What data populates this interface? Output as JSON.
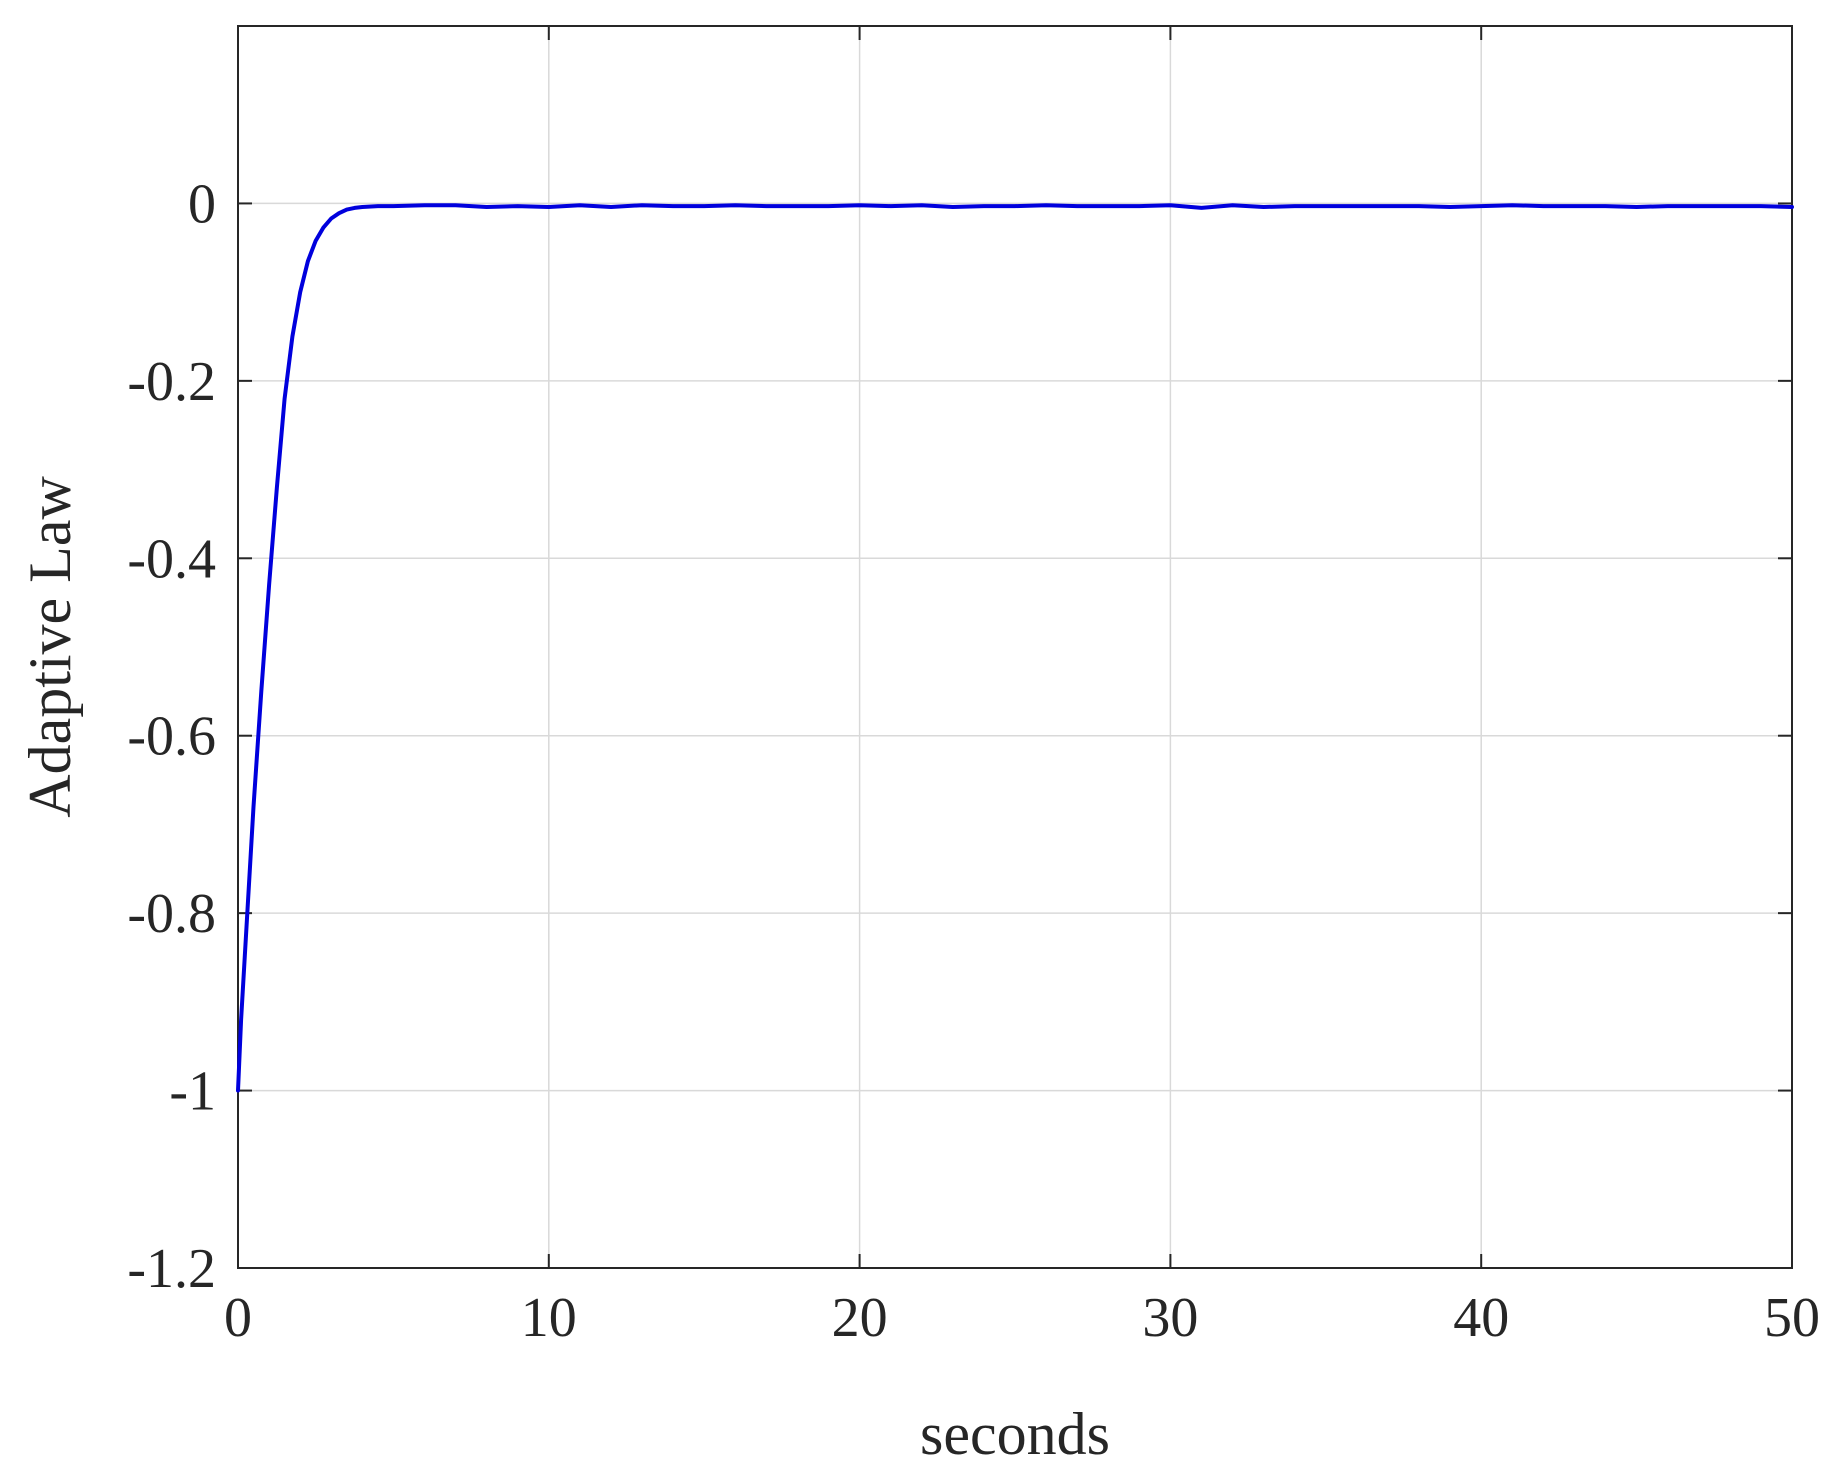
{
  "chart_data": {
    "type": "line",
    "title": "",
    "xlabel": "seconds",
    "ylabel": "Adaptive Law",
    "xlim": [
      0,
      50
    ],
    "ylim": [
      -1.2,
      0.2
    ],
    "xticks": [
      0,
      10,
      20,
      30,
      40,
      50
    ],
    "xtick_labels": [
      "0",
      "10",
      "20",
      "30",
      "40",
      "50"
    ],
    "yticks": [
      -1.2,
      -1,
      -0.8,
      -0.6,
      -0.4,
      -0.2,
      0
    ],
    "ytick_labels": [
      "-1.2",
      "-1",
      "-0.8",
      "-0.6",
      "-0.4",
      "-0.2",
      "0"
    ],
    "grid": true,
    "legend": "none",
    "colors": {
      "line": "#0000dd",
      "grid": "#d9d9d9",
      "axes": "#262626"
    },
    "series": [
      {
        "color": "#0000dd",
        "x": [
          0,
          0.1,
          0.3,
          0.5,
          0.75,
          1.0,
          1.25,
          1.5,
          1.75,
          2.0,
          2.25,
          2.5,
          2.75,
          3.0,
          3.25,
          3.5,
          3.75,
          4.0,
          4.5,
          5.0,
          6.0,
          7.0,
          8.0,
          9.0,
          10.0,
          11.0,
          12.0,
          13.0,
          14.0,
          15.0,
          16.0,
          17.0,
          18.0,
          19.0,
          20.0,
          21.0,
          22.0,
          23.0,
          24.0,
          25.0,
          26.0,
          27.0,
          28.0,
          29.0,
          30.0,
          31.0,
          32.0,
          33.0,
          34.0,
          35.0,
          36.0,
          37.0,
          38.0,
          39.0,
          40.0,
          41.0,
          42.0,
          43.0,
          44.0,
          45.0,
          46.0,
          47.0,
          48.0,
          49.0,
          50.0
        ],
        "y": [
          -1.0,
          -0.92,
          -0.8,
          -0.68,
          -0.55,
          -0.43,
          -0.32,
          -0.22,
          -0.15,
          -0.1,
          -0.065,
          -0.042,
          -0.027,
          -0.017,
          -0.011,
          -0.007,
          -0.005,
          -0.004,
          -0.003,
          -0.003,
          -0.002,
          -0.002,
          -0.004,
          -0.003,
          -0.004,
          -0.002,
          -0.004,
          -0.002,
          -0.003,
          -0.003,
          -0.002,
          -0.003,
          -0.003,
          -0.003,
          -0.002,
          -0.003,
          -0.002,
          -0.004,
          -0.003,
          -0.003,
          -0.002,
          -0.003,
          -0.003,
          -0.003,
          -0.002,
          -0.005,
          -0.002,
          -0.004,
          -0.003,
          -0.003,
          -0.003,
          -0.003,
          -0.003,
          -0.004,
          -0.003,
          -0.002,
          -0.003,
          -0.003,
          -0.003,
          -0.004,
          -0.003,
          -0.003,
          -0.003,
          -0.003,
          -0.004
        ]
      }
    ]
  }
}
